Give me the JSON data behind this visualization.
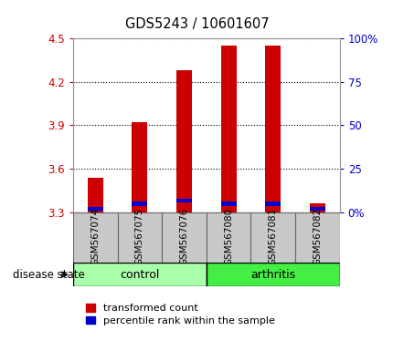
{
  "title": "GDS5243 / 10601607",
  "samples": [
    "GSM567074",
    "GSM567075",
    "GSM567076",
    "GSM567080",
    "GSM567081",
    "GSM567082"
  ],
  "groups": [
    "control",
    "control",
    "control",
    "arthritis",
    "arthritis",
    "arthritis"
  ],
  "red_values": [
    3.54,
    3.92,
    4.28,
    4.45,
    4.45,
    3.36
  ],
  "blue_percentile": [
    2,
    5,
    7,
    5,
    5,
    2
  ],
  "y_min": 3.3,
  "y_max": 4.5,
  "y_ticks": [
    3.3,
    3.6,
    3.9,
    4.2,
    4.5
  ],
  "right_ticks": [
    0,
    25,
    50,
    75,
    100
  ],
  "red_color": "#cc0000",
  "blue_color": "#0000cc",
  "control_color": "#aaffaa",
  "arthritis_color": "#44ee44",
  "label_area_bg": "#c8c8c8",
  "legend_red_label": "transformed count",
  "legend_blue_label": "percentile rank within the sample",
  "disease_state_label": "disease state"
}
